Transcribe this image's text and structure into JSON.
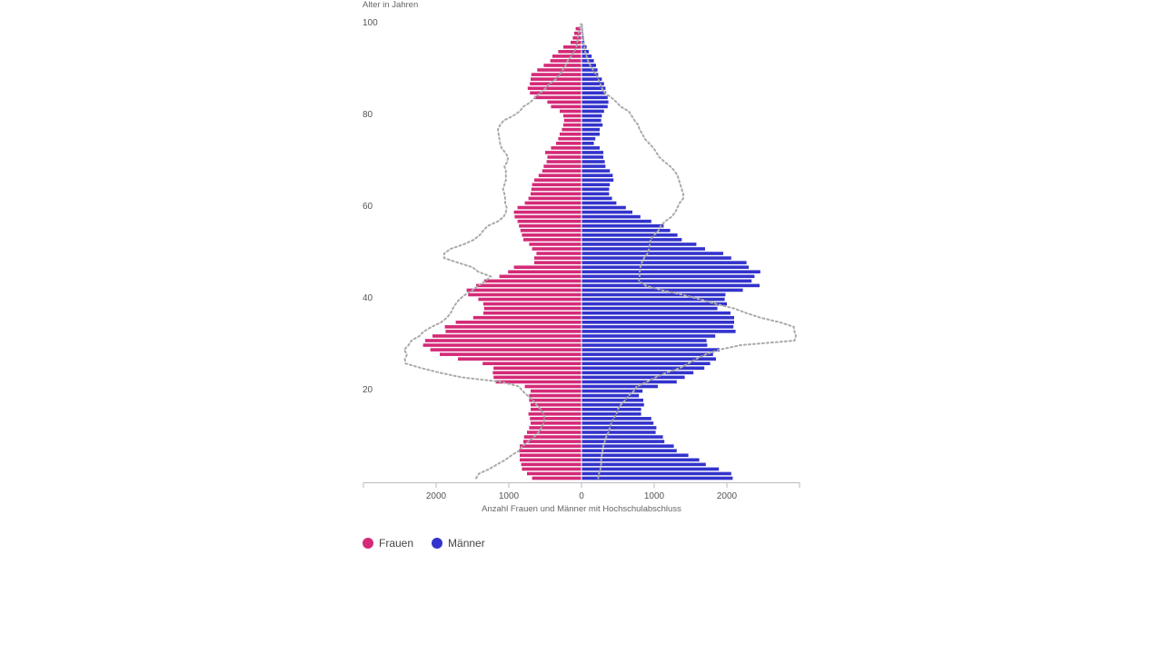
{
  "chart_data": {
    "type": "bar",
    "orientation": "horizontal-population-pyramid",
    "ylabel": "Alter in Jahren",
    "xlabel": "Anzahl Frauen und Männer mit Hochschulabschluss",
    "y_ticks": [
      20,
      40,
      60,
      80,
      100
    ],
    "x_ticks": [
      {
        "value": -2000,
        "label": "2000"
      },
      {
        "value": -1000,
        "label": "1000"
      },
      {
        "value": 0,
        "label": "0"
      },
      {
        "value": 1000,
        "label": "1000"
      },
      {
        "value": 2000,
        "label": "2000"
      }
    ],
    "xlim": [
      -3000,
      3000
    ],
    "ylim": [
      0,
      100
    ],
    "grid": false,
    "legend_position": "bottom-left",
    "colors": {
      "frauen": "#d42a78",
      "maenner": "#3333cc",
      "outline": "#aaaaaa"
    },
    "series": [
      {
        "name": "Frauen",
        "ages": [
          0,
          1,
          2,
          3,
          4,
          5,
          6,
          7,
          8,
          9,
          10,
          11,
          12,
          13,
          14,
          15,
          16,
          17,
          18,
          19,
          20,
          21,
          22,
          23,
          24,
          25,
          26,
          27,
          28,
          29,
          30,
          31,
          32,
          33,
          34,
          35,
          36,
          37,
          38,
          39,
          40,
          41,
          42,
          43,
          44,
          45,
          46,
          47,
          48,
          49,
          50,
          51,
          52,
          53,
          54,
          55,
          56,
          57,
          58,
          59,
          60,
          61,
          62,
          63,
          64,
          65,
          66,
          67,
          68,
          69,
          70,
          71,
          72,
          73,
          74,
          75,
          76,
          77,
          78,
          79,
          80,
          81,
          82,
          83,
          84,
          85,
          86,
          87,
          88,
          89,
          90,
          91,
          92,
          93,
          94,
          95,
          96,
          97,
          98
        ],
        "values": [
          680,
          750,
          820,
          830,
          850,
          850,
          860,
          850,
          800,
          790,
          750,
          720,
          700,
          710,
          730,
          700,
          700,
          720,
          720,
          700,
          780,
          1180,
          1210,
          1220,
          1210,
          1360,
          1700,
          1950,
          2080,
          2180,
          2150,
          2050,
          1870,
          1880,
          1730,
          1490,
          1350,
          1340,
          1350,
          1420,
          1560,
          1580,
          1450,
          1340,
          1130,
          1010,
          930,
          650,
          650,
          620,
          680,
          720,
          800,
          820,
          840,
          860,
          880,
          920,
          930,
          880,
          780,
          730,
          700,
          690,
          680,
          650,
          590,
          540,
          520,
          480,
          470,
          500,
          420,
          350,
          320,
          300,
          270,
          250,
          240,
          250,
          300,
          420,
          470,
          650,
          710,
          740,
          710,
          700,
          690,
          610,
          520,
          430,
          400,
          320,
          250,
          150,
          120,
          100,
          80
        ]
      },
      {
        "name": "Männer",
        "ages": [
          0,
          1,
          2,
          3,
          4,
          5,
          6,
          7,
          8,
          9,
          10,
          11,
          12,
          13,
          14,
          15,
          16,
          17,
          18,
          19,
          20,
          21,
          22,
          23,
          24,
          25,
          26,
          27,
          28,
          29,
          30,
          31,
          32,
          33,
          34,
          35,
          36,
          37,
          38,
          39,
          40,
          41,
          42,
          43,
          44,
          45,
          46,
          47,
          48,
          49,
          50,
          51,
          52,
          53,
          54,
          55,
          56,
          57,
          58,
          59,
          60,
          61,
          62,
          63,
          64,
          65,
          66,
          67,
          68,
          69,
          70,
          71,
          72,
          73,
          74,
          75,
          76,
          77,
          78,
          79,
          80,
          81,
          82,
          83,
          84,
          85,
          86,
          87,
          88,
          89,
          90,
          91,
          92,
          93,
          94,
          95,
          96,
          97,
          98
        ],
        "values": [
          2080,
          2060,
          1890,
          1710,
          1620,
          1470,
          1310,
          1270,
          1140,
          1120,
          1020,
          1030,
          990,
          960,
          820,
          820,
          860,
          850,
          790,
          840,
          1050,
          1310,
          1420,
          1540,
          1690,
          1770,
          1850,
          1810,
          1900,
          1730,
          1720,
          1840,
          2120,
          2090,
          2100,
          2100,
          2050,
          1870,
          2000,
          1970,
          1980,
          2220,
          2450,
          2340,
          2380,
          2460,
          2300,
          2270,
          2060,
          1950,
          1700,
          1580,
          1380,
          1320,
          1220,
          1130,
          960,
          810,
          700,
          610,
          480,
          420,
          380,
          380,
          390,
          440,
          430,
          390,
          330,
          320,
          300,
          300,
          250,
          170,
          190,
          250,
          250,
          290,
          270,
          280,
          310,
          360,
          370,
          360,
          340,
          330,
          310,
          280,
          230,
          220,
          200,
          170,
          140,
          100,
          70,
          40,
          30,
          20,
          15
        ]
      }
    ],
    "comparison_outline": {
      "ages": [
        0,
        1,
        2,
        3,
        4,
        5,
        6,
        7,
        8,
        9,
        10,
        11,
        12,
        13,
        14,
        15,
        16,
        17,
        18,
        19,
        20,
        21,
        22,
        23,
        24,
        25,
        26,
        27,
        28,
        29,
        30,
        31,
        32,
        33,
        34,
        35,
        36,
        37,
        38,
        39,
        40,
        41,
        42,
        43,
        44,
        45,
        46,
        47,
        48,
        49,
        50,
        51,
        52,
        53,
        54,
        55,
        56,
        57,
        58,
        59,
        60,
        61,
        62,
        63,
        64,
        65,
        66,
        67,
        68,
        69,
        70,
        71,
        72,
        73,
        74,
        75,
        76,
        77,
        78,
        79,
        80,
        81,
        82,
        83,
        84,
        85,
        86,
        87,
        88,
        89,
        90,
        91,
        92,
        93,
        94,
        95,
        96,
        97,
        98,
        99
      ],
      "left": [
        1450,
        1410,
        1270,
        1160,
        1050,
        960,
        860,
        810,
        730,
        650,
        590,
        550,
        520,
        510,
        520,
        560,
        620,
        670,
        740,
        810,
        860,
        1100,
        1650,
        1950,
        2200,
        2420,
        2430,
        2400,
        2440,
        2380,
        2340,
        2230,
        2170,
        2060,
        1930,
        1850,
        1800,
        1770,
        1730,
        1680,
        1600,
        1500,
        1420,
        1320,
        1250,
        1420,
        1500,
        1700,
        1890,
        1890,
        1800,
        1620,
        1480,
        1400,
        1350,
        1290,
        1150,
        1070,
        1040,
        1030,
        1050,
        1050,
        1060,
        1080,
        1060,
        1040,
        1040,
        1040,
        1060,
        1020,
        1010,
        1050,
        1100,
        1120,
        1130,
        1140,
        1150,
        1120,
        1070,
        940,
        850,
        800,
        700,
        640,
        570,
        490,
        440,
        350,
        300,
        260,
        220,
        190,
        140,
        100,
        70,
        60,
        50,
        40,
        20,
        10
      ],
      "right": [
        230,
        240,
        260,
        270,
        270,
        280,
        290,
        300,
        320,
        340,
        370,
        390,
        410,
        440,
        480,
        500,
        540,
        600,
        650,
        720,
        760,
        900,
        1020,
        1170,
        1350,
        1470,
        1580,
        1710,
        1890,
        2190,
        2930,
        2950,
        2930,
        2920,
        2730,
        2460,
        2270,
        2100,
        1850,
        1630,
        1390,
        1100,
        880,
        790,
        800,
        800,
        810,
        830,
        860,
        910,
        930,
        940,
        950,
        1000,
        1060,
        1090,
        1150,
        1240,
        1290,
        1320,
        1350,
        1400,
        1400,
        1380,
        1360,
        1340,
        1320,
        1280,
        1220,
        1140,
        1070,
        1030,
        990,
        930,
        870,
        840,
        800,
        780,
        730,
        690,
        650,
        540,
        480,
        410,
        320,
        280,
        260,
        230,
        200,
        160,
        120,
        90,
        70,
        50,
        40,
        30,
        25,
        15,
        10,
        5
      ]
    }
  },
  "legend": {
    "items": [
      {
        "label": "Frauen",
        "color": "#d42a78"
      },
      {
        "label": "Männer",
        "color": "#3333cc"
      }
    ]
  }
}
